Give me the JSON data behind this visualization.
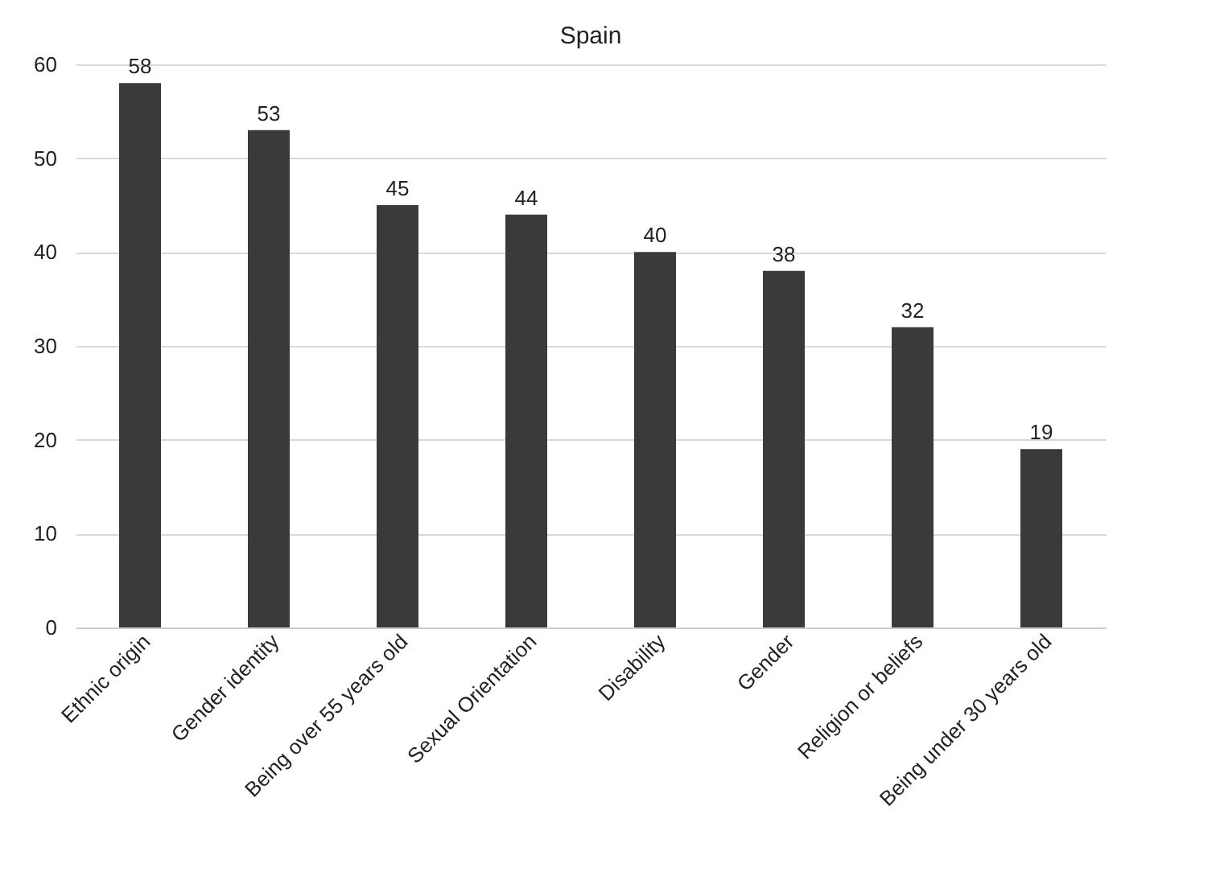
{
  "chart_data": {
    "type": "bar",
    "title": "Spain",
    "categories": [
      "Ethnic origin",
      "Gender identity",
      "Being over 55 years old",
      "Sexual Orientation",
      "Disability",
      "Gender",
      "Religion or beliefs",
      "Being under 30 years old"
    ],
    "values": [
      58,
      53,
      45,
      44,
      40,
      38,
      32,
      19
    ],
    "color": "#3a3a3a",
    "ylim": [
      0,
      60
    ],
    "yticks": [
      0,
      10,
      20,
      30,
      40,
      50,
      60
    ],
    "grid": "y",
    "data_labels": true
  }
}
